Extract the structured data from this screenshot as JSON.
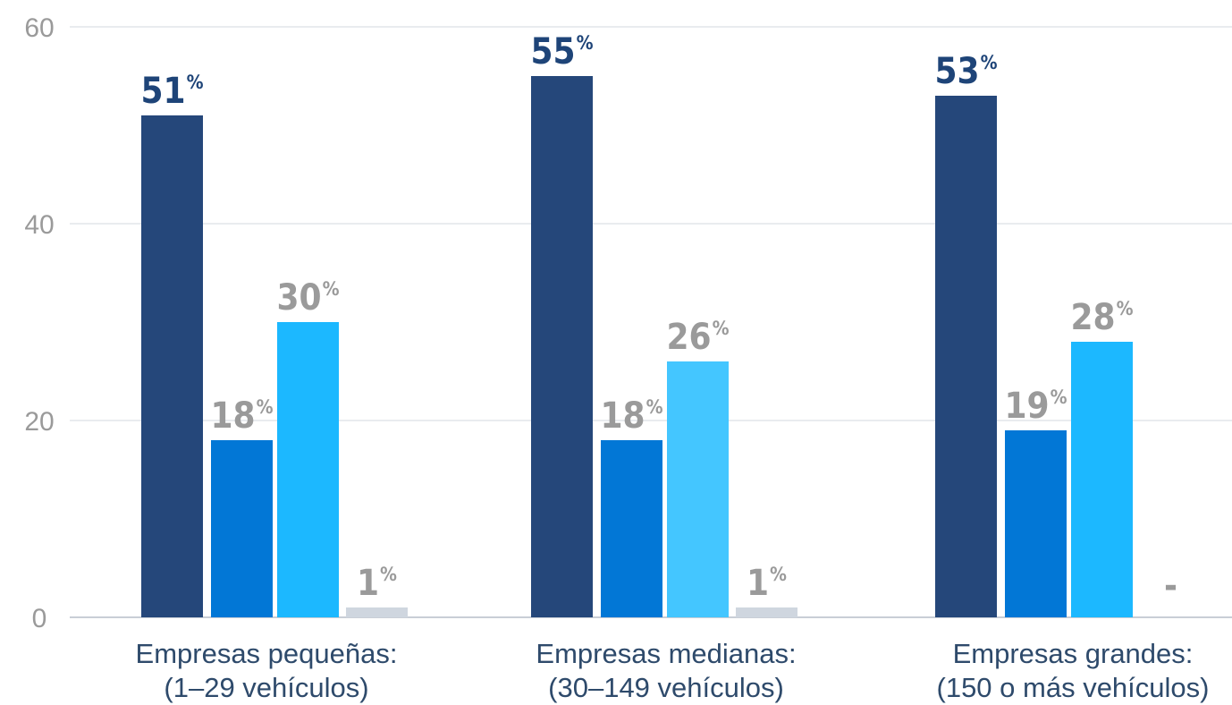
{
  "chart_data": {
    "type": "bar",
    "categories": [
      [
        "Empresas pequeñas:",
        "(1–29 vehículos)"
      ],
      [
        "Empresas medianas:",
        "(30–149 vehículos)"
      ],
      [
        "Empresas grandes:",
        "(150 o más vehículos)"
      ]
    ],
    "series": [
      {
        "values": [
          51,
          55,
          53
        ],
        "color": "#25477a",
        "label_color": "#1e4478"
      },
      {
        "values": [
          18,
          18,
          19
        ],
        "color": "#0277d6",
        "label_color": "#9a9a9a"
      },
      {
        "values": [
          30,
          26,
          28
        ],
        "color": "#1cb8ff",
        "label_color": "#9a9a9a",
        "colors": [
          "#1cb8ff",
          "#44c6ff",
          "#1cb8ff"
        ]
      },
      {
        "values": [
          1,
          1,
          0
        ],
        "color": "#cfd6df",
        "label_color": "#9a9a9a"
      }
    ],
    "data_labels": [
      [
        "51",
        "55",
        "53"
      ],
      [
        "18",
        "18",
        "19"
      ],
      [
        "30",
        "26",
        "28"
      ],
      [
        "1",
        "1",
        "-"
      ]
    ],
    "label_suffix": "%",
    "yticks": [
      "0",
      "20",
      "40",
      "60"
    ],
    "ylim": [
      0,
      60
    ],
    "grid": true,
    "legend": "none"
  }
}
